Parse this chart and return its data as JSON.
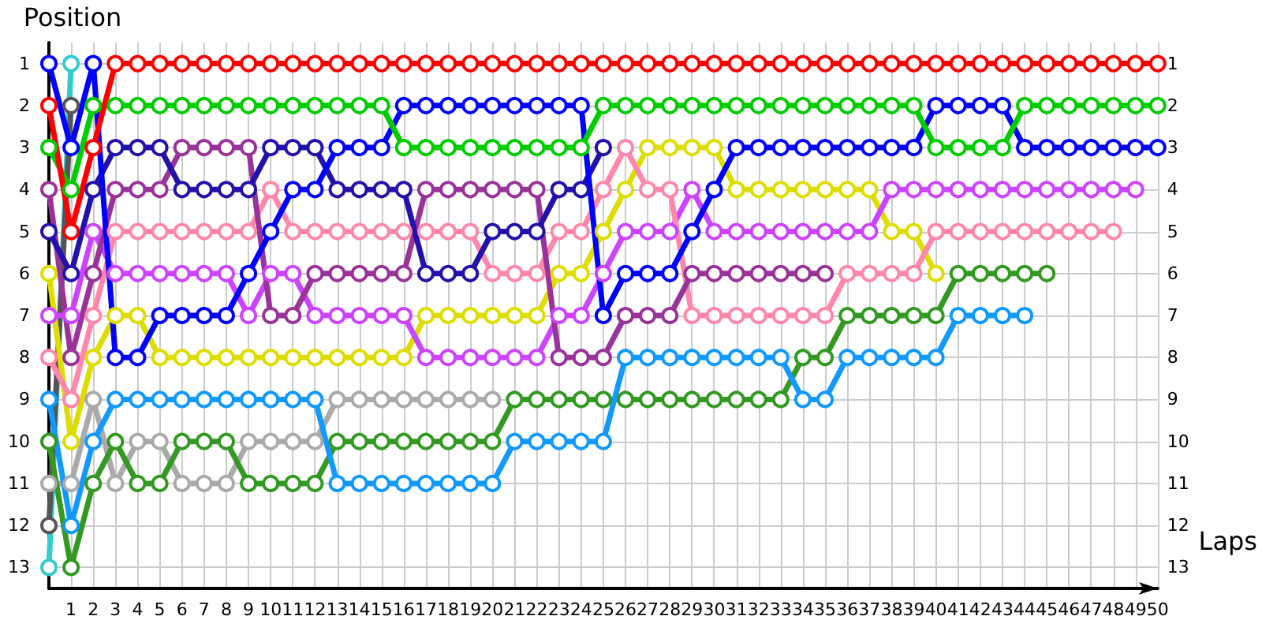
{
  "chart_data": {
    "type": "line",
    "xlabel": "Laps",
    "ylabel": "Position",
    "marker": "circle",
    "line_style": "solid",
    "grid": true,
    "x": [
      0,
      1,
      2,
      3,
      4,
      5,
      6,
      7,
      8,
      9,
      10,
      11,
      12,
      13,
      14,
      15,
      16,
      17,
      18,
      19,
      20,
      21,
      22,
      23,
      24,
      25,
      26,
      27,
      28,
      29,
      30,
      31,
      32,
      33,
      34,
      35,
      36,
      37,
      38,
      39,
      40,
      41,
      42,
      43,
      44,
      45,
      46,
      47,
      48,
      49,
      50
    ],
    "xlim": [
      0,
      50
    ],
    "xticks": [
      1,
      2,
      3,
      4,
      5,
      6,
      7,
      8,
      9,
      10,
      11,
      12,
      13,
      14,
      15,
      16,
      17,
      18,
      19,
      20,
      21,
      22,
      23,
      24,
      25,
      26,
      27,
      28,
      29,
      30,
      31,
      32,
      33,
      34,
      35,
      36,
      37,
      38,
      39,
      40,
      41,
      42,
      43,
      44,
      45,
      46,
      47,
      48,
      49,
      50
    ],
    "ylim": [
      13.5,
      0.5
    ],
    "yticks": [
      1,
      2,
      3,
      4,
      5,
      6,
      7,
      8,
      9,
      10,
      11,
      12,
      13
    ],
    "y2lim": [
      13.5,
      0.5
    ],
    "y2ticks": [
      1,
      2,
      3,
      4,
      5,
      6,
      7,
      8,
      9,
      10,
      11,
      12,
      13
    ],
    "series": [
      {
        "color": "#33cccc",
        "values": [
          13,
          1,
          null,
          null,
          null,
          null,
          null,
          null,
          null,
          null,
          null,
          null,
          null,
          null,
          null,
          null,
          null,
          null,
          null,
          null,
          null,
          null,
          null,
          null,
          null,
          null,
          null,
          null,
          null,
          null,
          null,
          null,
          null,
          null,
          null,
          null,
          null,
          null,
          null,
          null,
          null,
          null,
          null,
          null,
          null,
          null,
          null,
          null,
          null,
          null,
          null
        ]
      },
      {
        "color": "#555555",
        "values": [
          12,
          2,
          null,
          null,
          null,
          null,
          null,
          null,
          null,
          null,
          null,
          null,
          null,
          null,
          null,
          null,
          null,
          null,
          null,
          null,
          null,
          null,
          null,
          null,
          null,
          null,
          null,
          null,
          null,
          null,
          null,
          null,
          null,
          null,
          null,
          null,
          null,
          null,
          null,
          null,
          null,
          null,
          null,
          null,
          null,
          null,
          null,
          null,
          null,
          null,
          null
        ]
      },
      {
        "color": "#aaaaaa",
        "values": [
          11,
          11,
          9,
          11,
          10,
          10,
          11,
          11,
          11,
          10,
          10,
          10,
          10,
          9,
          9,
          9,
          9,
          9,
          9,
          9,
          9,
          null,
          null,
          null,
          null,
          null,
          null,
          null,
          null,
          null,
          null,
          null,
          null,
          null,
          null,
          null,
          null,
          null,
          null,
          null,
          null,
          null,
          null,
          null,
          null,
          null,
          null,
          null,
          null,
          null,
          null
        ]
      },
      {
        "color": "#339922",
        "values": [
          10,
          13,
          11,
          10,
          11,
          11,
          10,
          10,
          10,
          11,
          11,
          11,
          11,
          10,
          10,
          10,
          10,
          10,
          10,
          10,
          10,
          9,
          9,
          9,
          9,
          9,
          9,
          9,
          9,
          9,
          9,
          9,
          9,
          9,
          8,
          8,
          7,
          7,
          7,
          7,
          7,
          6,
          6,
          6,
          6,
          6,
          null,
          null,
          null,
          null,
          null
        ]
      },
      {
        "color": "#1199ff",
        "values": [
          9,
          12,
          10,
          9,
          9,
          9,
          9,
          9,
          9,
          9,
          9,
          9,
          9,
          11,
          11,
          11,
          11,
          11,
          11,
          11,
          11,
          10,
          10,
          10,
          10,
          10,
          8,
          8,
          8,
          8,
          8,
          8,
          8,
          8,
          9,
          9,
          8,
          8,
          8,
          8,
          8,
          7,
          7,
          7,
          7,
          null,
          null,
          null,
          null,
          null,
          null
        ]
      },
      {
        "color": "#dddd00",
        "values": [
          6,
          10,
          8,
          7,
          7,
          8,
          8,
          8,
          8,
          8,
          8,
          8,
          8,
          8,
          8,
          8,
          8,
          7,
          7,
          7,
          7,
          7,
          7,
          6,
          6,
          5,
          4,
          3,
          3,
          3,
          3,
          4,
          4,
          4,
          4,
          4,
          4,
          4,
          5,
          5,
          6,
          null,
          null,
          null,
          null,
          null,
          null,
          null,
          null,
          null,
          null
        ]
      },
      {
        "color": "#cc44ff",
        "values": [
          7,
          7,
          5,
          6,
          6,
          6,
          6,
          6,
          6,
          7,
          6,
          6,
          7,
          7,
          7,
          7,
          7,
          8,
          8,
          8,
          8,
          8,
          8,
          7,
          7,
          6,
          5,
          5,
          5,
          4,
          5,
          5,
          5,
          5,
          5,
          5,
          5,
          5,
          4,
          4,
          4,
          4,
          4,
          4,
          4,
          4,
          4,
          4,
          4,
          4,
          null
        ]
      },
      {
        "color": "#ff88aa",
        "values": [
          8,
          9,
          7,
          5,
          5,
          5,
          5,
          5,
          5,
          5,
          4,
          5,
          5,
          5,
          5,
          5,
          5,
          5,
          5,
          5,
          6,
          6,
          6,
          5,
          5,
          4,
          3,
          4,
          4,
          7,
          7,
          7,
          7,
          7,
          7,
          7,
          6,
          6,
          6,
          6,
          5,
          5,
          5,
          5,
          5,
          5,
          5,
          5,
          5,
          null,
          null
        ]
      },
      {
        "color": "#993399",
        "values": [
          4,
          8,
          6,
          4,
          4,
          4,
          3,
          3,
          3,
          3,
          7,
          7,
          6,
          6,
          6,
          6,
          6,
          4,
          4,
          4,
          4,
          4,
          4,
          8,
          8,
          8,
          7,
          7,
          7,
          6,
          6,
          6,
          6,
          6,
          6,
          6,
          null,
          null,
          null,
          null,
          null,
          null,
          null,
          null,
          null,
          null,
          null,
          null,
          null,
          null,
          null
        ]
      },
      {
        "color": "#2211aa",
        "values": [
          5,
          6,
          4,
          3,
          3,
          3,
          4,
          4,
          4,
          4,
          3,
          3,
          3,
          4,
          4,
          4,
          4,
          6,
          6,
          6,
          5,
          5,
          5,
          4,
          4,
          3,
          null,
          null,
          null,
          null,
          null,
          null,
          null,
          null,
          null,
          null,
          null,
          null,
          null,
          null,
          null,
          null,
          null,
          null,
          null,
          null,
          null,
          null,
          null,
          null,
          null
        ]
      },
      {
        "color": "#0000ff",
        "values": [
          1,
          3,
          1,
          8,
          8,
          7,
          7,
          7,
          7,
          6,
          5,
          4,
          4,
          3,
          3,
          3,
          2,
          2,
          2,
          2,
          2,
          2,
          2,
          2,
          2,
          7,
          6,
          6,
          6,
          5,
          4,
          3,
          3,
          3,
          3,
          3,
          3,
          3,
          3,
          3,
          2,
          2,
          2,
          2,
          3,
          3,
          3,
          3,
          3,
          3,
          3
        ]
      },
      {
        "color": "#00cc00",
        "values": [
          3,
          4,
          2,
          2,
          2,
          2,
          2,
          2,
          2,
          2,
          2,
          2,
          2,
          2,
          2,
          2,
          3,
          3,
          3,
          3,
          3,
          3,
          3,
          3,
          3,
          2,
          2,
          2,
          2,
          2,
          2,
          2,
          2,
          2,
          2,
          2,
          2,
          2,
          2,
          2,
          3,
          3,
          3,
          3,
          2,
          2,
          2,
          2,
          2,
          2,
          2
        ]
      },
      {
        "color": "#ff0000",
        "values": [
          2,
          5,
          3,
          1,
          1,
          1,
          1,
          1,
          1,
          1,
          1,
          1,
          1,
          1,
          1,
          1,
          1,
          1,
          1,
          1,
          1,
          1,
          1,
          1,
          1,
          1,
          1,
          1,
          1,
          1,
          1,
          1,
          1,
          1,
          1,
          1,
          1,
          1,
          1,
          1,
          1,
          1,
          1,
          1,
          1,
          1,
          1,
          1,
          1,
          1,
          1
        ]
      }
    ]
  }
}
